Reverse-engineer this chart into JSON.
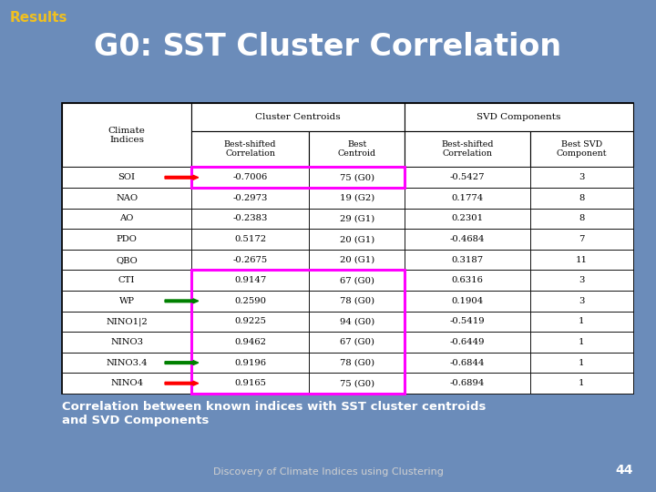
{
  "title": "G0: SST Cluster Correlation",
  "results_label": "Results",
  "subtitle": "Correlation between known indices with SST cluster centroids\nand SVD Components",
  "footer": "Discovery of Climate Indices using Clustering",
  "page_number": "44",
  "bg_color": "#6b8cba",
  "table": {
    "rows": [
      {
        "index": "SOI",
        "bsc": "-0.7006",
        "bc": "75 (G0)",
        "svd_bsc": "-0.5427",
        "svd_best": "3",
        "highlight_cc": true,
        "arrow": "red"
      },
      {
        "index": "NAO",
        "bsc": "-0.2973",
        "bc": "19 (G2)",
        "svd_bsc": "0.1774",
        "svd_best": "8",
        "highlight_cc": false,
        "arrow": null
      },
      {
        "index": "AO",
        "bsc": "-0.2383",
        "bc": "29 (G1)",
        "svd_bsc": "0.2301",
        "svd_best": "8",
        "highlight_cc": false,
        "arrow": null
      },
      {
        "index": "PDO",
        "bsc": "0.5172",
        "bc": "20 (G1)",
        "svd_bsc": "-0.4684",
        "svd_best": "7",
        "highlight_cc": false,
        "arrow": null
      },
      {
        "index": "QBO",
        "bsc": "-0.2675",
        "bc": "20 (G1)",
        "svd_bsc": "0.3187",
        "svd_best": "11",
        "highlight_cc": false,
        "arrow": null
      },
      {
        "index": "CTI",
        "bsc": "0.9147",
        "bc": "67 (G0)",
        "svd_bsc": "0.6316",
        "svd_best": "3",
        "highlight_cc": true,
        "arrow": null
      },
      {
        "index": "WP",
        "bsc": "0.2590",
        "bc": "78 (G0)",
        "svd_bsc": "0.1904",
        "svd_best": "3",
        "highlight_cc": true,
        "arrow": "green"
      },
      {
        "index": "NINO1|2",
        "bsc": "0.9225",
        "bc": "94 (G0)",
        "svd_bsc": "-0.5419",
        "svd_best": "1",
        "highlight_cc": true,
        "arrow": null
      },
      {
        "index": "NINO3",
        "bsc": "0.9462",
        "bc": "67 (G0)",
        "svd_bsc": "-0.6449",
        "svd_best": "1",
        "highlight_cc": true,
        "arrow": null
      },
      {
        "index": "NINO3.4",
        "bsc": "0.9196",
        "bc": "78 (G0)",
        "svd_bsc": "-0.6844",
        "svd_best": "1",
        "highlight_cc": true,
        "arrow": "green"
      },
      {
        "index": "NINO4",
        "bsc": "0.9165",
        "bc": "75 (G0)",
        "svd_bsc": "-0.6894",
        "svd_best": "1",
        "highlight_cc": true,
        "arrow": "red"
      }
    ]
  }
}
